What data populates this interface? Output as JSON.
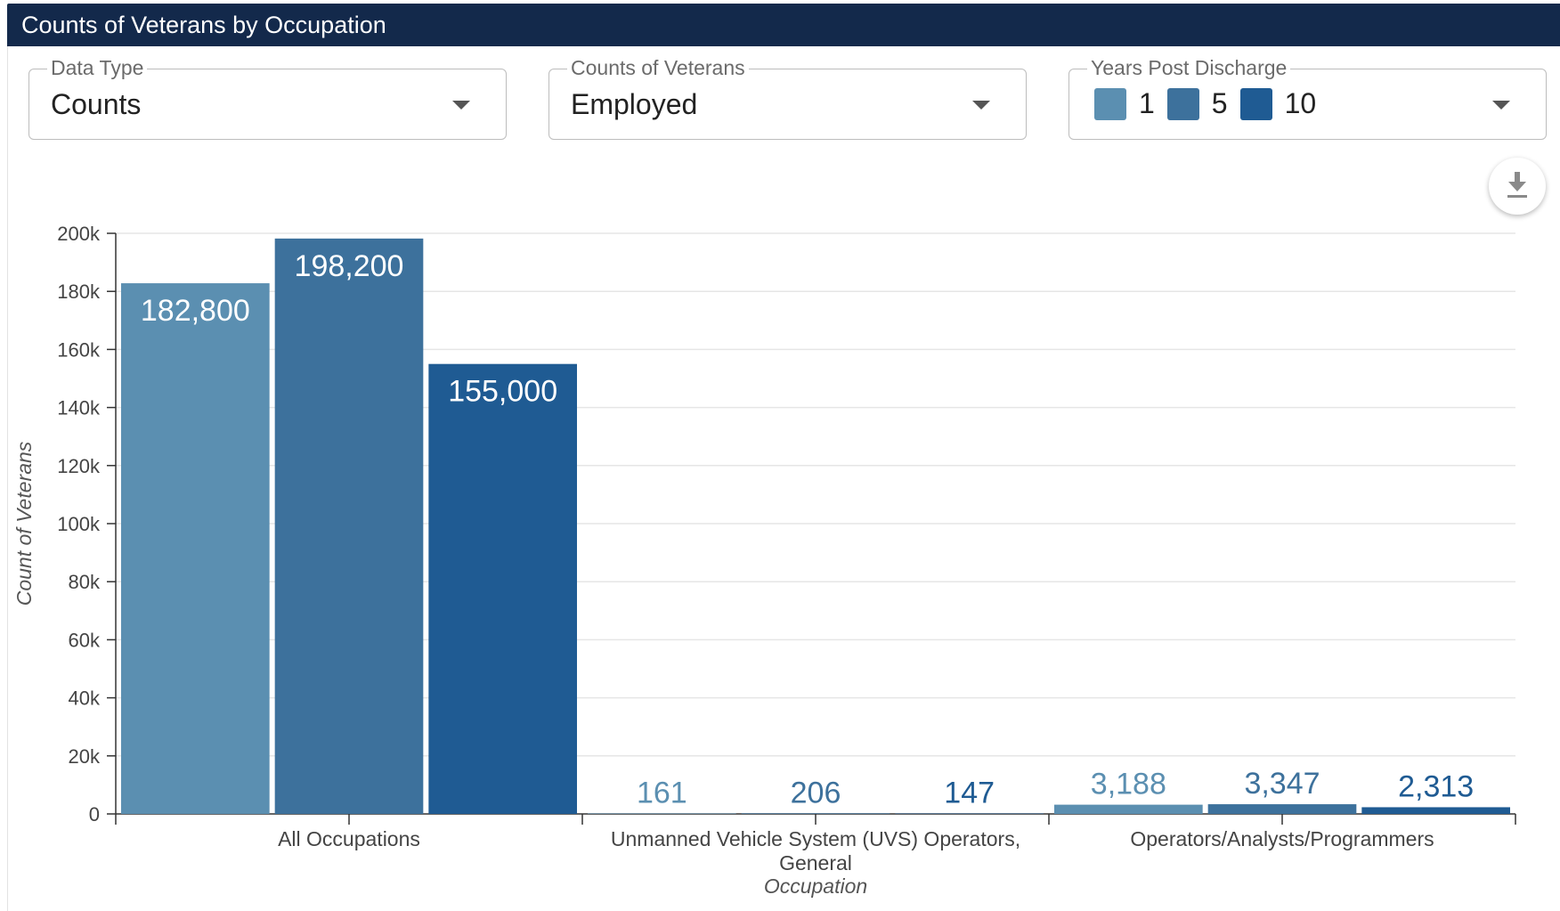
{
  "header": {
    "title": "Counts of Veterans by Occupation"
  },
  "filters": {
    "data_type": {
      "label": "Data Type",
      "value": "Counts"
    },
    "counts_of_veterans": {
      "label": "Counts of Veterans",
      "value": "Employed"
    },
    "years_post_discharge": {
      "label": "Years Post Discharge",
      "options": [
        {
          "label": "1",
          "color": "#5b8fb1"
        },
        {
          "label": "5",
          "color": "#3d719c"
        },
        {
          "label": "10",
          "color": "#1f5b93"
        }
      ]
    }
  },
  "download_icon": "download-icon",
  "chart_data": {
    "type": "bar",
    "xlabel": "Occupation",
    "ylabel": "Count of Veterans",
    "ylim": [
      0,
      200000
    ],
    "yticks": [
      "0",
      "20k",
      "40k",
      "60k",
      "80k",
      "100k",
      "120k",
      "140k",
      "160k",
      "180k",
      "200k"
    ],
    "categories": [
      [
        "All Occupations"
      ],
      [
        "Unmanned Vehicle System (UVS) Operators,",
        "General"
      ],
      [
        "Operators/Analysts/Programmers"
      ]
    ],
    "grid": true,
    "series": [
      {
        "name": "1",
        "color": "#5b8fb1",
        "values": [
          182800,
          161,
          3188
        ],
        "labels": [
          "182,800",
          "161",
          "3,188"
        ]
      },
      {
        "name": "5",
        "color": "#3d719c",
        "values": [
          198200,
          206,
          3347
        ],
        "labels": [
          "198,200",
          "206",
          "3,347"
        ]
      },
      {
        "name": "10",
        "color": "#1f5b93",
        "values": [
          155000,
          147,
          2313
        ],
        "labels": [
          "155,000",
          "147",
          "2,313"
        ]
      }
    ]
  }
}
